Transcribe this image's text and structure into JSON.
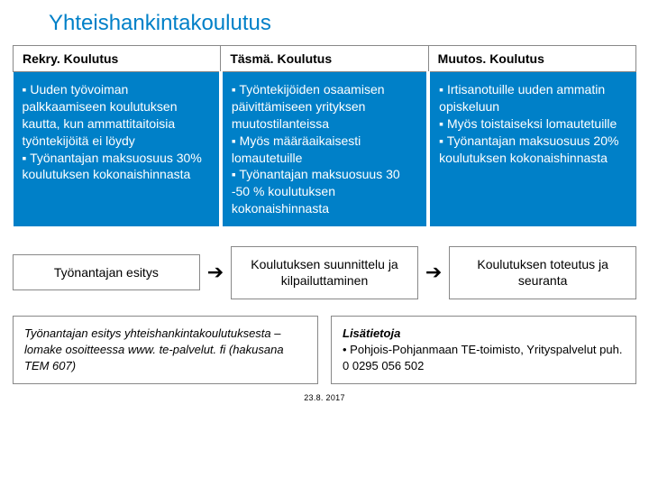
{
  "title": "Yhteishankintakoulutus",
  "columns": [
    {
      "header": "Rekry. Koulutus",
      "body": "▪ Uuden työvoiman palkkaamiseen koulutuksen kautta, kun ammattitaitoisia työntekijöitä ei löydy\n▪ Työnantajan maksuosuus 30% koulutuksen kokonaishinnasta"
    },
    {
      "header": "Täsmä. Koulutus",
      "body": "▪ Työntekijöiden osaamisen päivittämiseen yrityksen muutostilanteissa\n▪  Myös määräaikaisesti lomautetuille\n▪ Työnantajan maksuosuus 30 -50 % koulutuksen kokonaishinnasta"
    },
    {
      "header": "Muutos. Koulutus",
      "body": "▪ Irtisanotuille uuden ammatin opiskeluun\n▪ Myös toistaiseksi lomautetuille\n▪ Työnantajan maksuosuus 20% koulutuksen kokonaishinnasta"
    }
  ],
  "process": [
    "Työnantajan esitys",
    "Koulutuksen suunnittelu ja kilpailuttaminen",
    "Koulutuksen toteutus ja seuranta"
  ],
  "bottom_left": "Työnantajan esitys yhteishankintakoulutuksesta –lomake osoitteessa www. te-palvelut. fi (hakusana TEM 607)",
  "bottom_right_label": "Lisätietoja",
  "bottom_right_text": "• Pohjois-Pohjanmaan TE-toimisto, Yrityspalvelut puh. 0 0295 056 502",
  "footer_date": "23.8. 2017",
  "colors": {
    "title": "#0080c8",
    "block_bg": "#0080c8",
    "border": "#888888"
  }
}
